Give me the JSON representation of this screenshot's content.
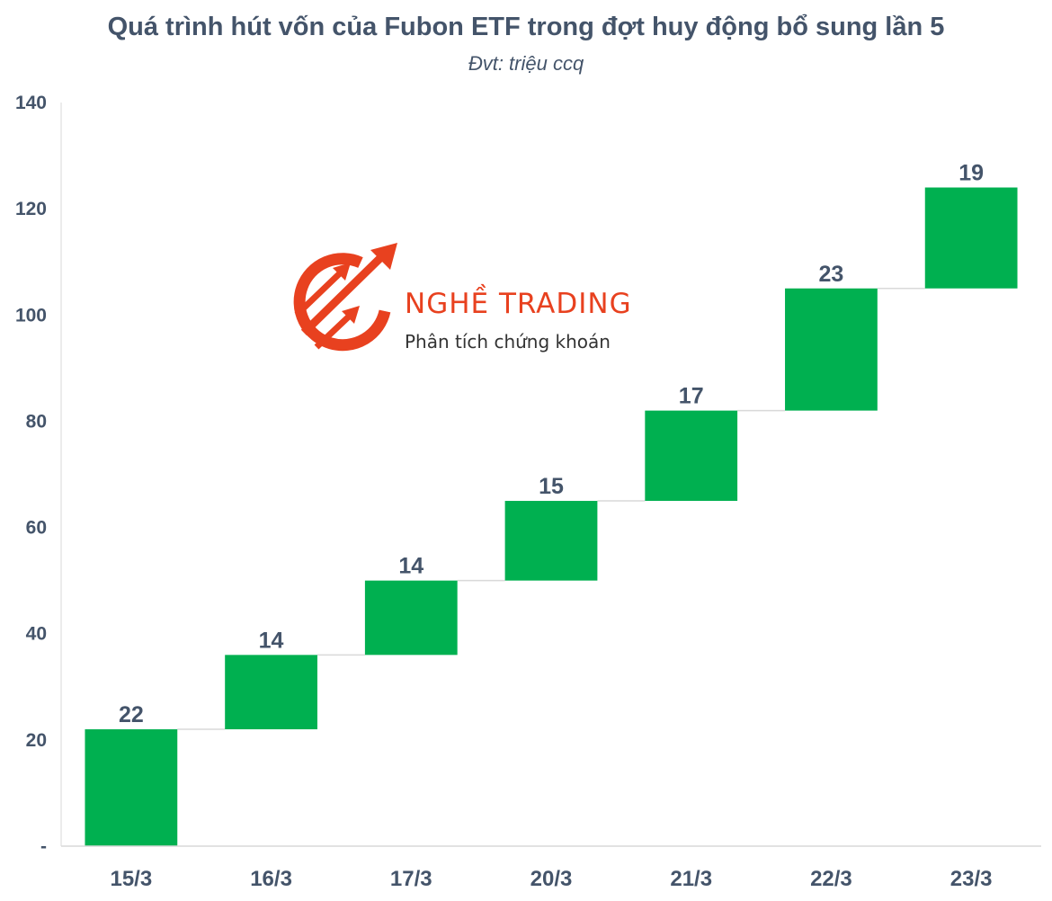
{
  "header": {
    "title": "Quá trình hút vốn của Fubon ETF trong đợt huy động bổ sung lần 5",
    "subtitle": "Đvt: triệu ccq"
  },
  "watermark": {
    "brand": "NGHỀ TRADING",
    "tagline": "Phân tích chứng khoán",
    "icon": "logo-arrows-circle-icon",
    "color": "#e8411f"
  },
  "chart_data": {
    "type": "bar",
    "subtype": "waterfall",
    "categories": [
      "15/3",
      "16/3",
      "17/3",
      "20/3",
      "21/3",
      "22/3",
      "23/3"
    ],
    "values": [
      22,
      14,
      14,
      15,
      17,
      23,
      19
    ],
    "data_labels": [
      "22",
      "14",
      "14",
      "15",
      "17",
      "23",
      "19"
    ],
    "title": "Quá trình hút vốn của Fubon ETF trong đợt huy động bổ sung lần 5",
    "subtitle": "Đvt: triệu ccq",
    "xlabel": "",
    "ylabel": "",
    "ylim": [
      0,
      140
    ],
    "yticks": [
      0,
      20,
      40,
      60,
      80,
      100,
      120,
      140
    ],
    "ytick_labels": [
      "-",
      "20",
      "40",
      "60",
      "80",
      "100",
      "120",
      "140"
    ],
    "grid": false,
    "legend": "none",
    "bar_color": "#00b050",
    "connector_color": "#d9d9d9"
  }
}
